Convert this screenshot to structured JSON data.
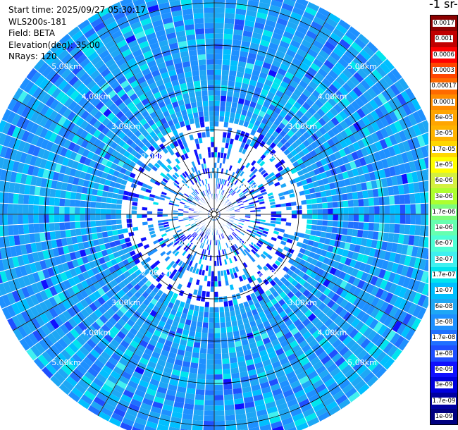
{
  "info": {
    "start_time": "Start time: 2025/09/27 05:30:17",
    "instrument": "WLS200s-181",
    "field": "Field: BETA",
    "elevation": "Elevation(deg): 35.00",
    "nrays": "NRays: 120"
  },
  "colorbar": {
    "unit_title": "-1 sr-",
    "labels": [
      "0.0017",
      "0.001",
      "0.0006",
      "0.0003",
      "0.00017",
      "0.0001",
      "6e-05",
      "3e-05",
      "1.7e-05",
      "1e-05",
      "6e-06",
      "3e-06",
      "1.7e-06",
      "1e-06",
      "6e-07",
      "3e-07",
      "1.7e-07",
      "1e-07",
      "6e-08",
      "3e-08",
      "1.7e-08",
      "1e-08",
      "6e-09",
      "3e-09",
      "1.7e-09",
      "1e-09"
    ],
    "colors": [
      "#8b0000",
      "#c00000",
      "#ff0000",
      "#ff4500",
      "#ff6a00",
      "#ff8c00",
      "#ffa500",
      "#ffb300",
      "#ffd700",
      "#ffff00",
      "#d4f040",
      "#adff2f",
      "#7cfc7c",
      "#66ffb0",
      "#4dffd6",
      "#40f0f0",
      "#00e5ee",
      "#00bfff",
      "#1ea7f5",
      "#1e90ff",
      "#2070ff",
      "#1f4fff",
      "#1010ff",
      "#0000dd",
      "#0000a0",
      "#000080"
    ]
  },
  "chart_data": {
    "type": "heatmap",
    "projection": "polar PPI",
    "field": "BETA",
    "elevation_deg": 35.0,
    "n_rays": 120,
    "range_km_max": 5.5,
    "range_ring_labels": [
      "1.00km",
      "2.00km",
      "3.00km",
      "4.00km",
      "5.00km"
    ],
    "dominant_value_range": [
      "1e-08",
      "1.7e-07"
    ],
    "grid": true
  }
}
